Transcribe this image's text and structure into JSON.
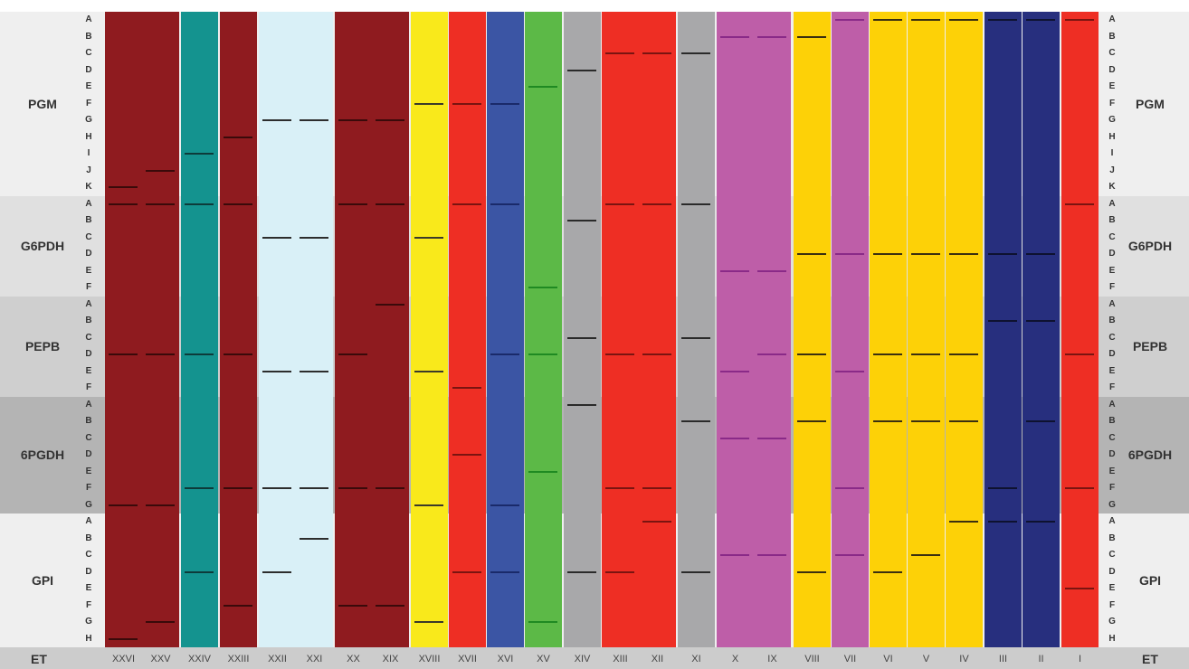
{
  "colors": {
    "maroon": "#8f1b1f",
    "teal": "#14938f",
    "lightblue": "#d9f0f7",
    "yellow": "#f9e91b",
    "red": "#ee2e24",
    "blue": "#3b55a4",
    "green": "#5cb947",
    "grey": "#a8a8aa",
    "pink": "#be5ea8",
    "gold": "#fdd107",
    "navy": "#272f7e"
  },
  "loci": [
    {
      "name": "PGM",
      "alleles": [
        "A",
        "B",
        "C",
        "D",
        "E",
        "F",
        "G",
        "H",
        "I",
        "J",
        "K"
      ]
    },
    {
      "name": "G6PDH",
      "alleles": [
        "A",
        "B",
        "C",
        "D",
        "E",
        "F"
      ]
    },
    {
      "name": "PEPB",
      "alleles": [
        "A",
        "B",
        "C",
        "D",
        "E",
        "F"
      ]
    },
    {
      "name": "6PGDH",
      "alleles": [
        "A",
        "B",
        "C",
        "D",
        "E",
        "F",
        "G"
      ]
    },
    {
      "name": "GPI",
      "alleles": [
        "A",
        "B",
        "C",
        "D",
        "E",
        "F",
        "G",
        "H"
      ]
    }
  ],
  "et_label": "ET",
  "lanes": [
    {
      "et": "XXVI",
      "color": "maroon",
      "bars": {
        "PGM": "K",
        "G6PDH": "A",
        "PEPB": "D",
        "6PGDH": "G",
        "GPI": "H"
      }
    },
    {
      "et": "XXV",
      "color": "maroon",
      "bars": {
        "PGM": "J",
        "G6PDH": "A",
        "PEPB": "D",
        "6PGDH": "G",
        "GPI": "G"
      }
    },
    {
      "et": "XXIV",
      "color": "teal",
      "bars": {
        "PGM": "I",
        "G6PDH": "A",
        "PEPB": "D",
        "6PGDH": "F",
        "GPI": "D"
      }
    },
    {
      "et": "XXIII",
      "color": "maroon",
      "bars": {
        "PGM": "H",
        "G6PDH": "A",
        "PEPB": "D",
        "6PGDH": "F",
        "GPI": "F"
      }
    },
    {
      "et": "XXII",
      "color": "lightblue",
      "bars": {
        "PGM": "G",
        "G6PDH": "C",
        "PEPB": "E",
        "6PGDH": "F",
        "GPI": "D"
      }
    },
    {
      "et": "XXI",
      "color": "lightblue",
      "bars": {
        "PGM": "G",
        "G6PDH": "C",
        "PEPB": "E",
        "6PGDH": "F",
        "GPI": "B"
      }
    },
    {
      "et": "XX",
      "color": "maroon",
      "bars": {
        "PGM": "G",
        "G6PDH": "A",
        "PEPB": "D",
        "6PGDH": "F",
        "GPI": "F"
      }
    },
    {
      "et": "XIX",
      "color": "maroon",
      "bars": {
        "PGM": "G",
        "G6PDH": "A",
        "PEPB": "A",
        "6PGDH": "F",
        "GPI": "F"
      }
    },
    {
      "et": "XVIII",
      "color": "yellow",
      "bars": {
        "PGM": "F",
        "G6PDH": "C",
        "PEPB": "E",
        "6PGDH": "G",
        "GPI": "G"
      }
    },
    {
      "et": "XVII",
      "color": "red",
      "bars": {
        "PGM": "F",
        "G6PDH": "A",
        "PEPB": "F",
        "6PGDH": "D",
        "GPI": "D"
      }
    },
    {
      "et": "XVI",
      "color": "blue",
      "bars": {
        "PGM": "F",
        "G6PDH": "A",
        "PEPB": "D",
        "6PGDH": "G",
        "GPI": "D"
      }
    },
    {
      "et": "XV",
      "color": "green",
      "bars": {
        "PGM": "E",
        "G6PDH": "F",
        "PEPB": "D",
        "6PGDH": "E",
        "GPI": "G"
      }
    },
    {
      "et": "XIV",
      "color": "grey",
      "bars": {
        "PGM": "D",
        "G6PDH": "B",
        "PEPB": "C",
        "6PGDH": "A",
        "GPI": "D"
      }
    },
    {
      "et": "XIII",
      "color": "red",
      "bars": {
        "PGM": "C",
        "G6PDH": "A",
        "PEPB": "D",
        "6PGDH": "F",
        "GPI": "D"
      }
    },
    {
      "et": "XII",
      "color": "red",
      "bars": {
        "PGM": "C",
        "G6PDH": "A",
        "PEPB": "D",
        "6PGDH": "F",
        "GPI": "A"
      }
    },
    {
      "et": "XI",
      "color": "grey",
      "bars": {
        "PGM": "C",
        "G6PDH": "A",
        "PEPB": "C",
        "6PGDH": "B",
        "GPI": "D"
      }
    },
    {
      "et": "X",
      "color": "pink",
      "bars": {
        "PGM": "B",
        "G6PDH": "E",
        "PEPB": "E",
        "6PGDH": "C",
        "GPI": "C"
      }
    },
    {
      "et": "IX",
      "color": "pink",
      "bars": {
        "PGM": "B",
        "G6PDH": "E",
        "PEPB": "D",
        "6PGDH": "C",
        "GPI": "C"
      }
    },
    {
      "et": "VIII",
      "color": "gold",
      "bars": {
        "PGM": "B",
        "G6PDH": "D",
        "PEPB": "D",
        "6PGDH": "B",
        "GPI": "D"
      }
    },
    {
      "et": "VII",
      "color": "pink",
      "bars": {
        "PGM": "A",
        "G6PDH": "D",
        "PEPB": "E",
        "6PGDH": "F",
        "GPI": "C"
      }
    },
    {
      "et": "VI",
      "color": "gold",
      "bars": {
        "PGM": "A",
        "G6PDH": "D",
        "PEPB": "D",
        "6PGDH": "B",
        "GPI": "D"
      }
    },
    {
      "et": "V",
      "color": "gold",
      "bars": {
        "PGM": "A",
        "G6PDH": "D",
        "PEPB": "D",
        "6PGDH": "B",
        "GPI": "C"
      }
    },
    {
      "et": "IV",
      "color": "gold",
      "bars": {
        "PGM": "A",
        "G6PDH": "D",
        "PEPB": "D",
        "6PGDH": "B",
        "GPI": "A"
      }
    },
    {
      "et": "III",
      "color": "navy",
      "bars": {
        "PGM": "A",
        "G6PDH": "D",
        "PEPB": "B",
        "6PGDH": "F",
        "GPI": "A"
      }
    },
    {
      "et": "II",
      "color": "navy",
      "bars": {
        "PGM": "A",
        "G6PDH": "D",
        "PEPB": "B",
        "6PGDH": "B",
        "GPI": "A"
      }
    },
    {
      "et": "I",
      "color": "red",
      "bars": {
        "PGM": "A",
        "G6PDH": "A",
        "PEPB": "D",
        "6PGDH": "F",
        "GPI": "E"
      }
    }
  ]
}
